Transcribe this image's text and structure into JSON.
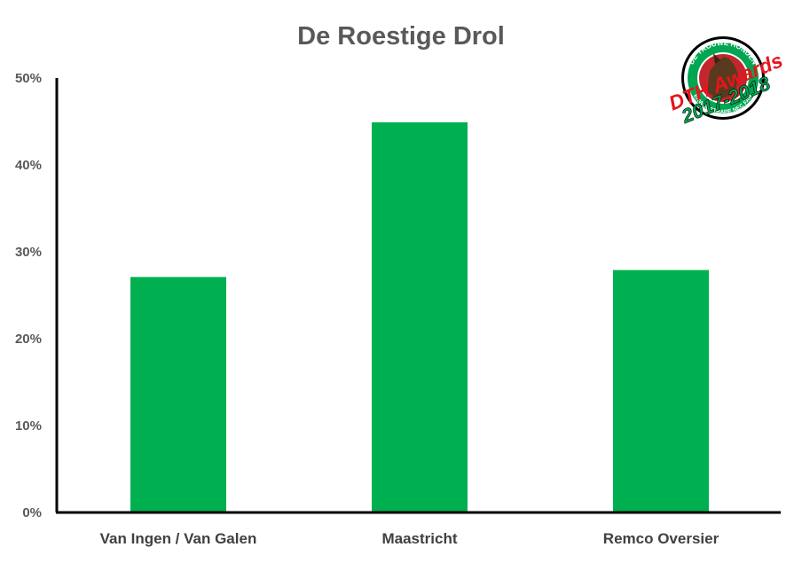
{
  "chart_data": {
    "type": "bar",
    "title": "De Roestige Drol",
    "categories": [
      "Van Ingen / Van Galen",
      "Maastricht",
      "Remco Oversier"
    ],
    "series": [
      {
        "values": [
          27.1,
          44.9,
          27.9
        ]
      }
    ],
    "ylim": [
      0,
      50
    ],
    "yticks": [
      0,
      10,
      20,
      30,
      40,
      50
    ],
    "ytick_labels": [
      "0%",
      "10%",
      "20%",
      "30%",
      "40%",
      "50%"
    ],
    "xlabel": "",
    "ylabel": "",
    "grid": false,
    "legend": "none",
    "bar_color": "#00B050"
  },
  "logo": {
    "ring_top": "DE TROUWE HONDEN",
    "ring_bottom": "ONVERWOESTBARE NEC FANSITE",
    "script_text": "DTH Awards",
    "years": "2017-2018"
  }
}
